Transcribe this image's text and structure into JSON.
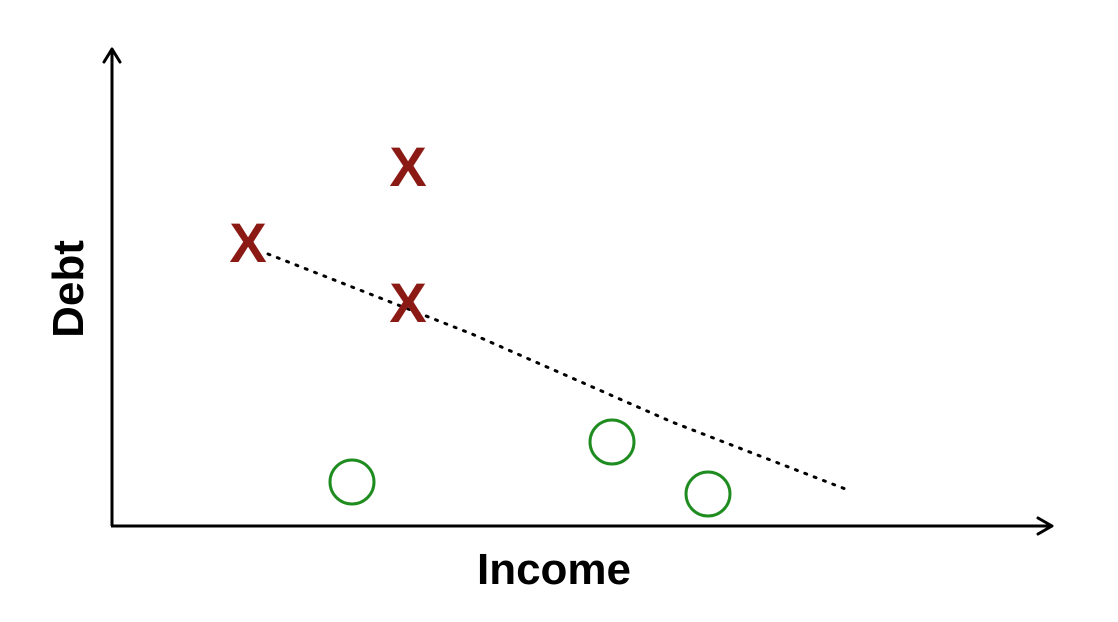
{
  "diagram": {
    "x_axis_label": "Income",
    "y_axis_label": "Debt",
    "class_x_color": "#8b1a14",
    "class_o_color": "#1f8c1f",
    "class_x_points": [
      {
        "label": "X",
        "x": 3.4,
        "y": 7.1
      },
      {
        "label": "X",
        "x": 7.4,
        "y": 9.0
      },
      {
        "label": "X",
        "x": 7.4,
        "y": 5.6
      }
    ],
    "class_o_points": [
      {
        "x": 6.0,
        "y": 1.1
      },
      {
        "x": 12.5,
        "y": 2.1
      },
      {
        "x": 14.9,
        "y": 0.8
      }
    ],
    "decision_boundary": [
      {
        "x": 3.9,
        "y": 6.8
      },
      {
        "x": 9.0,
        "y": 4.8
      },
      {
        "x": 14.0,
        "y": 2.6
      },
      {
        "x": 18.4,
        "y": 0.9
      }
    ]
  }
}
